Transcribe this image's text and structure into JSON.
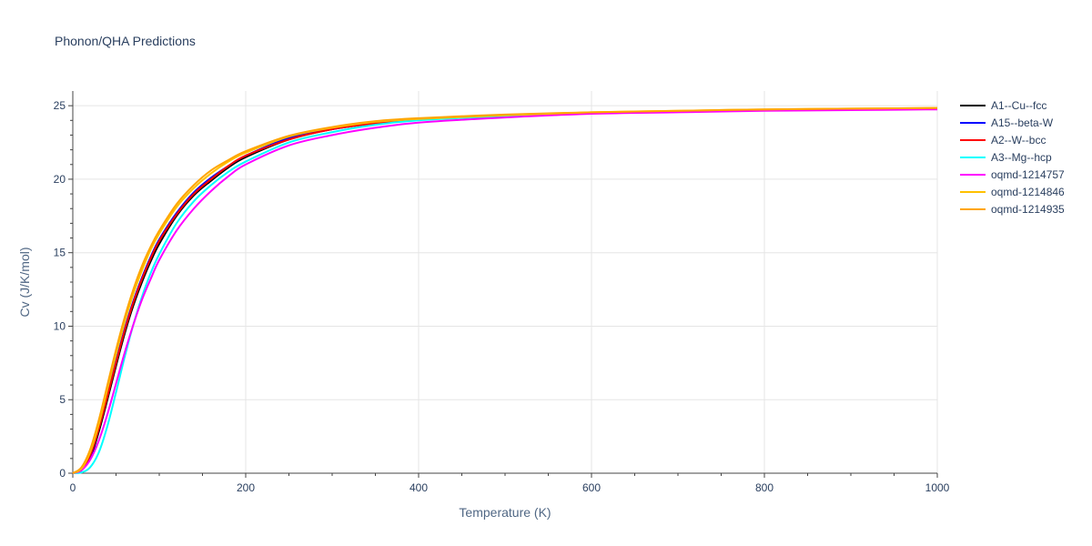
{
  "chart_data": {
    "type": "line",
    "title": "Phonon/QHA Predictions",
    "xlabel": "Temperature (K)",
    "ylabel": "Cv (J/K/mol)",
    "xlim": [
      0,
      1000
    ],
    "ylim": [
      0,
      26
    ],
    "x_ticks": [
      0,
      200,
      400,
      600,
      800,
      1000
    ],
    "y_ticks": [
      0,
      5,
      10,
      15,
      20,
      25
    ],
    "grid": true,
    "legend_position": "right",
    "x": [
      0,
      10,
      20,
      30,
      40,
      50,
      60,
      70,
      80,
      90,
      100,
      120,
      140,
      160,
      180,
      200,
      250,
      300,
      350,
      400,
      500,
      600,
      700,
      800,
      900,
      1000
    ],
    "series": [
      {
        "name": "A1--Cu--fcc",
        "color": "#000000",
        "values": [
          0,
          0.2,
          1.0,
          2.8,
          5.0,
          7.3,
          9.5,
          11.4,
          13.0,
          14.4,
          15.6,
          17.5,
          18.9,
          19.9,
          20.8,
          21.5,
          22.7,
          23.4,
          23.8,
          24.05,
          24.3,
          24.5,
          24.6,
          24.7,
          24.75,
          24.8
        ]
      },
      {
        "name": "A15--beta-W",
        "color": "#0000ff",
        "values": [
          0,
          0.2,
          1.1,
          3.0,
          5.3,
          7.6,
          9.8,
          11.7,
          13.3,
          14.7,
          15.9,
          17.7,
          19.1,
          20.1,
          20.9,
          21.6,
          22.8,
          23.4,
          23.8,
          24.05,
          24.3,
          24.5,
          24.6,
          24.7,
          24.75,
          24.8
        ]
      },
      {
        "name": "A2--W--bcc",
        "color": "#ff0000",
        "values": [
          0,
          0.3,
          1.2,
          3.0,
          5.2,
          7.5,
          9.7,
          11.6,
          13.2,
          14.6,
          15.8,
          17.6,
          19.0,
          20.0,
          20.9,
          21.6,
          22.7,
          23.4,
          23.8,
          24.05,
          24.3,
          24.5,
          24.6,
          24.7,
          24.75,
          24.8
        ]
      },
      {
        "name": "A3--Mg--hcp",
        "color": "#00ffff",
        "values": [
          0,
          0.05,
          0.4,
          1.4,
          3.2,
          5.5,
          7.9,
          10.1,
          12.0,
          13.6,
          14.9,
          17.0,
          18.5,
          19.6,
          20.5,
          21.2,
          22.5,
          23.2,
          23.7,
          24.0,
          24.3,
          24.5,
          24.6,
          24.7,
          24.75,
          24.8
        ]
      },
      {
        "name": "oqmd-1214757",
        "color": "#ff00ff",
        "values": [
          0,
          0.2,
          0.9,
          2.2,
          4.0,
          6.1,
          8.2,
          10.1,
          11.8,
          13.2,
          14.5,
          16.5,
          18.0,
          19.2,
          20.2,
          21.0,
          22.3,
          23.0,
          23.5,
          23.85,
          24.2,
          24.45,
          24.55,
          24.65,
          24.7,
          24.75
        ]
      },
      {
        "name": "oqmd-1214846",
        "color": "#ffc000",
        "values": [
          0,
          0.3,
          1.4,
          3.3,
          5.7,
          8.1,
          10.3,
          12.2,
          13.8,
          15.2,
          16.3,
          18.1,
          19.4,
          20.4,
          21.2,
          21.8,
          22.9,
          23.5,
          23.9,
          24.1,
          24.35,
          24.55,
          24.65,
          24.75,
          24.8,
          24.85
        ]
      },
      {
        "name": "oqmd-1214935",
        "color": "#ffa500",
        "values": [
          0,
          0.4,
          1.6,
          3.6,
          6.0,
          8.4,
          10.6,
          12.5,
          14.1,
          15.4,
          16.5,
          18.3,
          19.6,
          20.6,
          21.3,
          21.9,
          22.95,
          23.55,
          23.95,
          24.15,
          24.4,
          24.55,
          24.65,
          24.75,
          24.8,
          24.85
        ]
      }
    ]
  }
}
